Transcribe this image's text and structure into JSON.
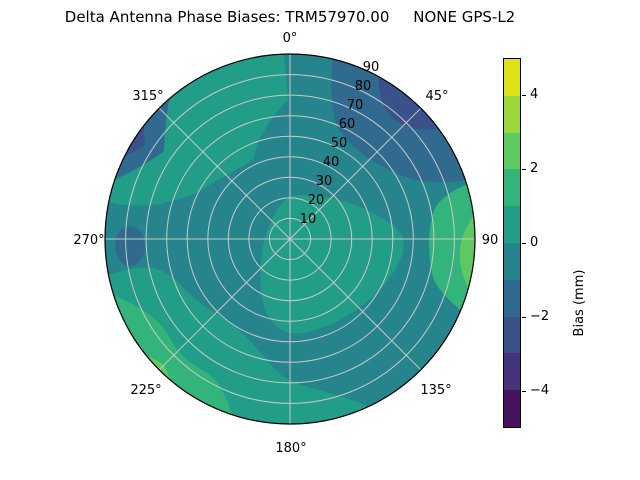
{
  "title": "Delta Antenna Phase Biases: TRM57970.00     NONE GPS-L2",
  "polar": {
    "theta_labels": [
      "0°",
      "45°",
      "90",
      "135°",
      "180°",
      "225°",
      "270°",
      "315°"
    ],
    "radial_labels": [
      "10",
      "20",
      "30",
      "40",
      "50",
      "60",
      "70",
      "80",
      "90"
    ]
  },
  "colorbar": {
    "label": "Bias (mm)",
    "range": [
      -5,
      5
    ],
    "ticks": [
      {
        "value": 4,
        "label": "4"
      },
      {
        "value": 2,
        "label": "2"
      },
      {
        "value": 0,
        "label": "0"
      },
      {
        "value": -2,
        "label": "−2"
      },
      {
        "value": -4,
        "label": "−4"
      }
    ]
  },
  "chart_data": {
    "type": "heatmap",
    "projection": "polar",
    "theta_zero": "top",
    "theta_direction": "clockwise",
    "title": "Delta Antenna Phase Biases: TRM57970.00     NONE GPS-L2",
    "colormap": "viridis",
    "colorbar_label": "Bias (mm)",
    "levels": [
      -5,
      -4,
      -3,
      -2,
      -1,
      0,
      1,
      2,
      3,
      4,
      5
    ],
    "level_colors": [
      "#46125e",
      "#45347c",
      "#3b518a",
      "#306a8e",
      "#26848d",
      "#219d88",
      "#33b47a",
      "#5fc860",
      "#9bd83b",
      "#dde318"
    ],
    "azimuth_deg": [
      0,
      45,
      90,
      135,
      180,
      225,
      270,
      315
    ],
    "zenith_deg": [
      0,
      15,
      30,
      45,
      60,
      75,
      90
    ],
    "bias_mm": [
      [
        0.0,
        -0.5,
        -0.5,
        -0.5,
        0.5,
        0.5,
        0.5
      ],
      [
        0.0,
        0.5,
        0.5,
        -0.5,
        -1.5,
        -2.5,
        -2.5
      ],
      [
        0.0,
        0.5,
        0.5,
        0.5,
        -0.5,
        1.5,
        2.5
      ],
      [
        0.0,
        0.5,
        -0.5,
        -0.5,
        -0.5,
        -0.5,
        -0.5
      ],
      [
        0.0,
        0.5,
        0.5,
        -0.5,
        -0.5,
        -0.5,
        0.5
      ],
      [
        0.0,
        -0.5,
        -0.5,
        -0.5,
        0.5,
        0.5,
        1.5
      ],
      [
        0.0,
        -0.5,
        -0.5,
        0.5,
        0.5,
        -1.5,
        0.0
      ],
      [
        0.0,
        -0.5,
        -0.5,
        0.5,
        0.5,
        -1.5,
        -2.5
      ]
    ],
    "notable_features": [
      "minimum bias band (-2 to -3 mm) at azimuth 30-55°, zenith 65-90",
      "secondary minimum at azimuth 290-315°, zenith 80-90",
      "maximum bias band (+2 to +3 mm) at azimuth 80-110°, zenith 83-90",
      "positive arc (+1 to +2 mm) along azimuth 195-255°, zenith 75-90"
    ]
  }
}
